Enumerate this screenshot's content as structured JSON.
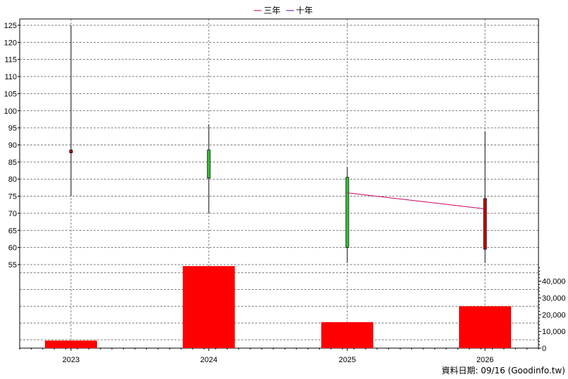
{
  "chart_data": {
    "type": "candlestick+bar",
    "legend": [
      {
        "label": "三年",
        "color": "#cc0066"
      },
      {
        "label": "十年",
        "color": "#660099"
      }
    ],
    "categories": [
      "2023",
      "2024",
      "2025",
      "2026"
    ],
    "price_axis": {
      "ylim": [
        55,
        126
      ],
      "ticks": [
        55,
        60,
        65,
        70,
        75,
        80,
        85,
        90,
        95,
        100,
        105,
        110,
        115,
        120,
        125
      ]
    },
    "volume_axis": {
      "ylim": [
        0,
        48000
      ],
      "ticks": [
        0,
        10000,
        20000,
        30000,
        40000
      ],
      "tick_labels": [
        "0",
        "10,000",
        "20,000",
        "30,000",
        "40,000"
      ]
    },
    "candles": [
      {
        "year": "2023",
        "open": 87.7,
        "close": 88.5,
        "high": 125,
        "low": 75,
        "color": "#cc0000"
      },
      {
        "year": "2024",
        "open": 88.5,
        "close": 80.3,
        "high": 96,
        "low": 70,
        "color": "#33cc33"
      },
      {
        "year": "2025",
        "open": 80.5,
        "close": 60,
        "high": 83.5,
        "low": 55.5,
        "color": "#33cc33"
      },
      {
        "year": "2026",
        "open": 59.5,
        "close": 74.3,
        "high": 94,
        "low": 55.5,
        "color": "#cc0000"
      }
    ],
    "volumes": [
      {
        "year": "2023",
        "value": 4500
      },
      {
        "year": "2024",
        "value": 49000
      },
      {
        "year": "2025",
        "value": 15500
      },
      {
        "year": "2026",
        "value": 25000
      }
    ],
    "three_year_line": [
      {
        "year": "2025",
        "value": 76
      },
      {
        "year": "2026",
        "value": 71.3
      }
    ],
    "colors": {
      "volume": "#ff0000",
      "grid": "#808080",
      "three_year": "#cc0066",
      "ten_year": "#660099"
    }
  },
  "footer": "資料日期: 09/16  (Goodinfo.tw)"
}
